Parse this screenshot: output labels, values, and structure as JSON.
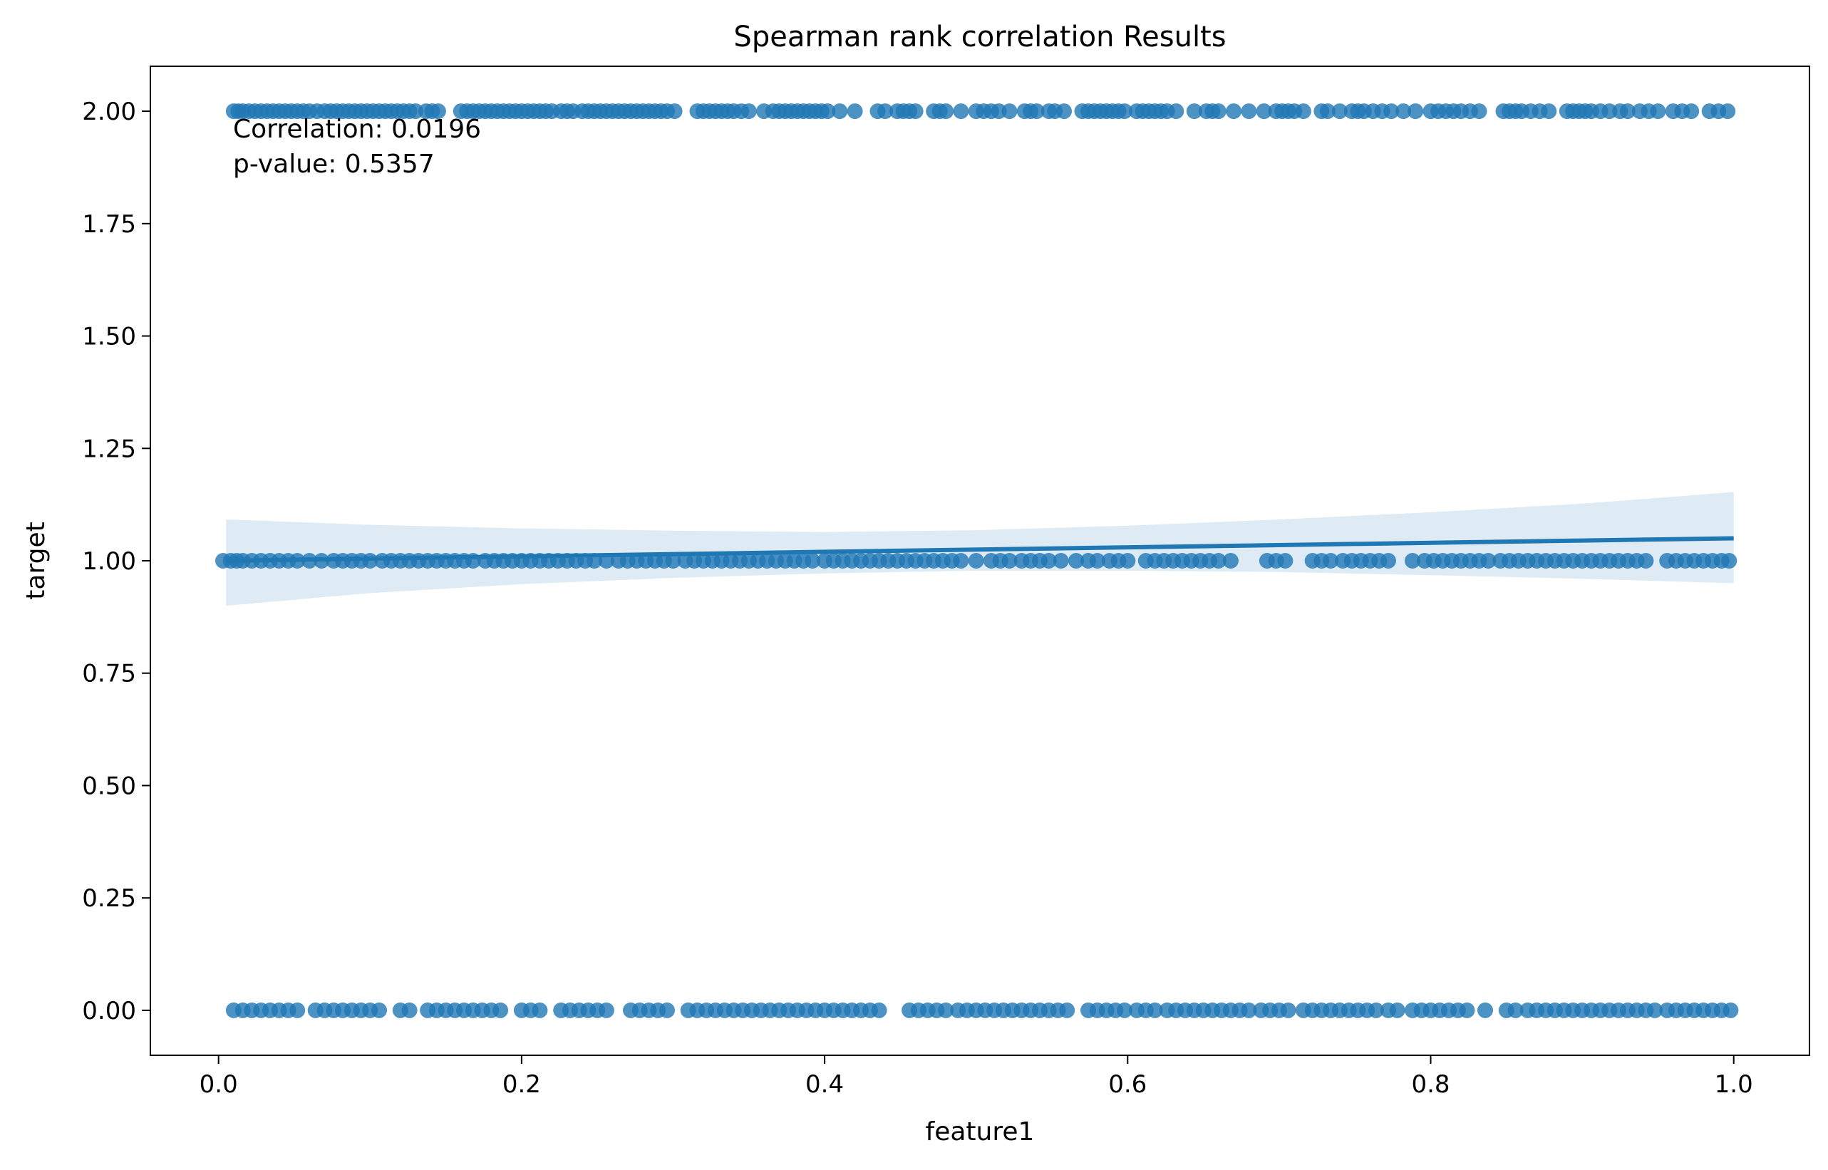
{
  "chart_data": {
    "type": "scatter",
    "title": "Spearman rank correlation Results",
    "xlabel": "feature1",
    "ylabel": "target",
    "xlim": [
      -0.045,
      1.05
    ],
    "ylim": [
      -0.1,
      2.1
    ],
    "x_ticks": [
      0.0,
      0.2,
      0.4,
      0.6,
      0.8,
      1.0
    ],
    "x_tick_labels": [
      "0.0",
      "0.2",
      "0.4",
      "0.6",
      "0.8",
      "1.0"
    ],
    "y_ticks": [
      0.0,
      0.25,
      0.5,
      0.75,
      1.0,
      1.25,
      1.5,
      1.75,
      2.0
    ],
    "y_tick_labels": [
      "0.00",
      "0.25",
      "0.50",
      "0.75",
      "1.00",
      "1.25",
      "1.50",
      "1.75",
      "2.00"
    ],
    "grid": false,
    "annotations": [
      "Correlation: 0.0196",
      "p-value: 0.5357"
    ],
    "colors": {
      "points": "#1f77b4",
      "regression_line": "#1f77b4",
      "confidence_band": "#1f77b4"
    },
    "series": [
      {
        "y": 2.0,
        "x": [
          0.01,
          0.013,
          0.016,
          0.02,
          0.024,
          0.028,
          0.032,
          0.036,
          0.04,
          0.044,
          0.048,
          0.052,
          0.056,
          0.06,
          0.065,
          0.07,
          0.074,
          0.078,
          0.082,
          0.086,
          0.09,
          0.094,
          0.098,
          0.102,
          0.106,
          0.11,
          0.114,
          0.118,
          0.122,
          0.126,
          0.13,
          0.137,
          0.141,
          0.145,
          0.16,
          0.164,
          0.168,
          0.172,
          0.176,
          0.18,
          0.184,
          0.188,
          0.192,
          0.196,
          0.2,
          0.204,
          0.208,
          0.212,
          0.216,
          0.22,
          0.226,
          0.23,
          0.234,
          0.24,
          0.244,
          0.248,
          0.252,
          0.256,
          0.26,
          0.264,
          0.268,
          0.272,
          0.276,
          0.28,
          0.284,
          0.288,
          0.292,
          0.296,
          0.301,
          0.316,
          0.32,
          0.324,
          0.328,
          0.332,
          0.336,
          0.34,
          0.345,
          0.35,
          0.36,
          0.366,
          0.37,
          0.374,
          0.378,
          0.382,
          0.386,
          0.39,
          0.394,
          0.398,
          0.402,
          0.41,
          0.42,
          0.435,
          0.44,
          0.448,
          0.452,
          0.456,
          0.46,
          0.472,
          0.476,
          0.48,
          0.49,
          0.5,
          0.505,
          0.51,
          0.515,
          0.522,
          0.532,
          0.536,
          0.54,
          0.548,
          0.552,
          0.558,
          0.57,
          0.574,
          0.578,
          0.582,
          0.586,
          0.59,
          0.594,
          0.598,
          0.606,
          0.61,
          0.614,
          0.618,
          0.622,
          0.626,
          0.632,
          0.644,
          0.652,
          0.656,
          0.66,
          0.67,
          0.68,
          0.69,
          0.698,
          0.702,
          0.706,
          0.71,
          0.716,
          0.728,
          0.732,
          0.74,
          0.748,
          0.752,
          0.756,
          0.762,
          0.768,
          0.774,
          0.782,
          0.79,
          0.8,
          0.805,
          0.81,
          0.815,
          0.82,
          0.826,
          0.832,
          0.848,
          0.852,
          0.856,
          0.86,
          0.866,
          0.872,
          0.878,
          0.89,
          0.894,
          0.898,
          0.902,
          0.906,
          0.912,
          0.918,
          0.925,
          0.93,
          0.938,
          0.944,
          0.95,
          0.96,
          0.966,
          0.972,
          0.984,
          0.99,
          0.996
        ]
      },
      {
        "y": 1.0,
        "x": [
          0.003,
          0.008,
          0.012,
          0.016,
          0.022,
          0.028,
          0.034,
          0.04,
          0.046,
          0.052,
          0.06,
          0.068,
          0.076,
          0.082,
          0.088,
          0.094,
          0.1,
          0.108,
          0.114,
          0.12,
          0.126,
          0.132,
          0.138,
          0.144,
          0.15,
          0.156,
          0.162,
          0.168,
          0.176,
          0.182,
          0.188,
          0.194,
          0.2,
          0.206,
          0.212,
          0.218,
          0.224,
          0.23,
          0.236,
          0.242,
          0.248,
          0.256,
          0.264,
          0.27,
          0.276,
          0.282,
          0.288,
          0.294,
          0.3,
          0.308,
          0.314,
          0.32,
          0.326,
          0.332,
          0.338,
          0.344,
          0.35,
          0.356,
          0.362,
          0.368,
          0.374,
          0.38,
          0.386,
          0.392,
          0.4,
          0.406,
          0.412,
          0.418,
          0.424,
          0.43,
          0.436,
          0.442,
          0.448,
          0.454,
          0.46,
          0.466,
          0.472,
          0.478,
          0.484,
          0.49,
          0.5,
          0.51,
          0.516,
          0.522,
          0.53,
          0.536,
          0.542,
          0.548,
          0.556,
          0.566,
          0.574,
          0.58,
          0.588,
          0.594,
          0.6,
          0.612,
          0.618,
          0.624,
          0.63,
          0.636,
          0.642,
          0.648,
          0.654,
          0.66,
          0.668,
          0.692,
          0.698,
          0.704,
          0.722,
          0.728,
          0.734,
          0.742,
          0.748,
          0.754,
          0.76,
          0.766,
          0.772,
          0.788,
          0.796,
          0.802,
          0.808,
          0.814,
          0.82,
          0.826,
          0.832,
          0.838,
          0.846,
          0.852,
          0.858,
          0.864,
          0.87,
          0.876,
          0.882,
          0.888,
          0.894,
          0.9,
          0.906,
          0.912,
          0.918,
          0.924,
          0.93,
          0.936,
          0.942,
          0.956,
          0.962,
          0.968,
          0.974,
          0.98,
          0.986,
          0.992,
          0.997
        ]
      },
      {
        "y": 0.0,
        "x": [
          0.01,
          0.016,
          0.022,
          0.028,
          0.034,
          0.04,
          0.046,
          0.052,
          0.064,
          0.07,
          0.076,
          0.082,
          0.088,
          0.094,
          0.1,
          0.106,
          0.12,
          0.126,
          0.138,
          0.144,
          0.15,
          0.156,
          0.162,
          0.168,
          0.174,
          0.18,
          0.186,
          0.2,
          0.206,
          0.212,
          0.226,
          0.232,
          0.238,
          0.244,
          0.25,
          0.256,
          0.272,
          0.278,
          0.284,
          0.29,
          0.296,
          0.31,
          0.316,
          0.322,
          0.328,
          0.334,
          0.34,
          0.346,
          0.352,
          0.358,
          0.364,
          0.37,
          0.376,
          0.382,
          0.388,
          0.394,
          0.4,
          0.406,
          0.412,
          0.418,
          0.424,
          0.43,
          0.436,
          0.456,
          0.462,
          0.468,
          0.474,
          0.48,
          0.488,
          0.494,
          0.5,
          0.506,
          0.512,
          0.518,
          0.524,
          0.53,
          0.536,
          0.542,
          0.548,
          0.554,
          0.56,
          0.574,
          0.58,
          0.586,
          0.592,
          0.598,
          0.606,
          0.612,
          0.618,
          0.626,
          0.632,
          0.638,
          0.644,
          0.65,
          0.656,
          0.662,
          0.668,
          0.674,
          0.68,
          0.688,
          0.694,
          0.7,
          0.706,
          0.716,
          0.722,
          0.728,
          0.734,
          0.74,
          0.746,
          0.752,
          0.758,
          0.764,
          0.772,
          0.778,
          0.788,
          0.794,
          0.8,
          0.806,
          0.812,
          0.818,
          0.824,
          0.836,
          0.85,
          0.856,
          0.864,
          0.87,
          0.876,
          0.882,
          0.888,
          0.894,
          0.9,
          0.906,
          0.912,
          0.918,
          0.924,
          0.93,
          0.936,
          0.942,
          0.948,
          0.956,
          0.962,
          0.968,
          0.974,
          0.98,
          0.986,
          0.992,
          0.998
        ]
      }
    ],
    "regression": {
      "x": [
        0.005,
        1.0
      ],
      "y": [
        1.0,
        1.05
      ],
      "ci_upper": [
        [
          0.005,
          1.092
        ],
        [
          0.1,
          1.08
        ],
        [
          0.2,
          1.072
        ],
        [
          0.3,
          1.067
        ],
        [
          0.4,
          1.064
        ],
        [
          0.5,
          1.068
        ],
        [
          0.6,
          1.078
        ],
        [
          0.7,
          1.092
        ],
        [
          0.8,
          1.108
        ],
        [
          0.9,
          1.127
        ],
        [
          1.0,
          1.153
        ]
      ],
      "ci_lower": [
        [
          0.005,
          0.9
        ],
        [
          0.1,
          0.928
        ],
        [
          0.2,
          0.948
        ],
        [
          0.3,
          0.962
        ],
        [
          0.4,
          0.972
        ],
        [
          0.5,
          0.978
        ],
        [
          0.6,
          0.978
        ],
        [
          0.7,
          0.975
        ],
        [
          0.8,
          0.968
        ],
        [
          0.9,
          0.96
        ],
        [
          1.0,
          0.95
        ]
      ]
    }
  }
}
